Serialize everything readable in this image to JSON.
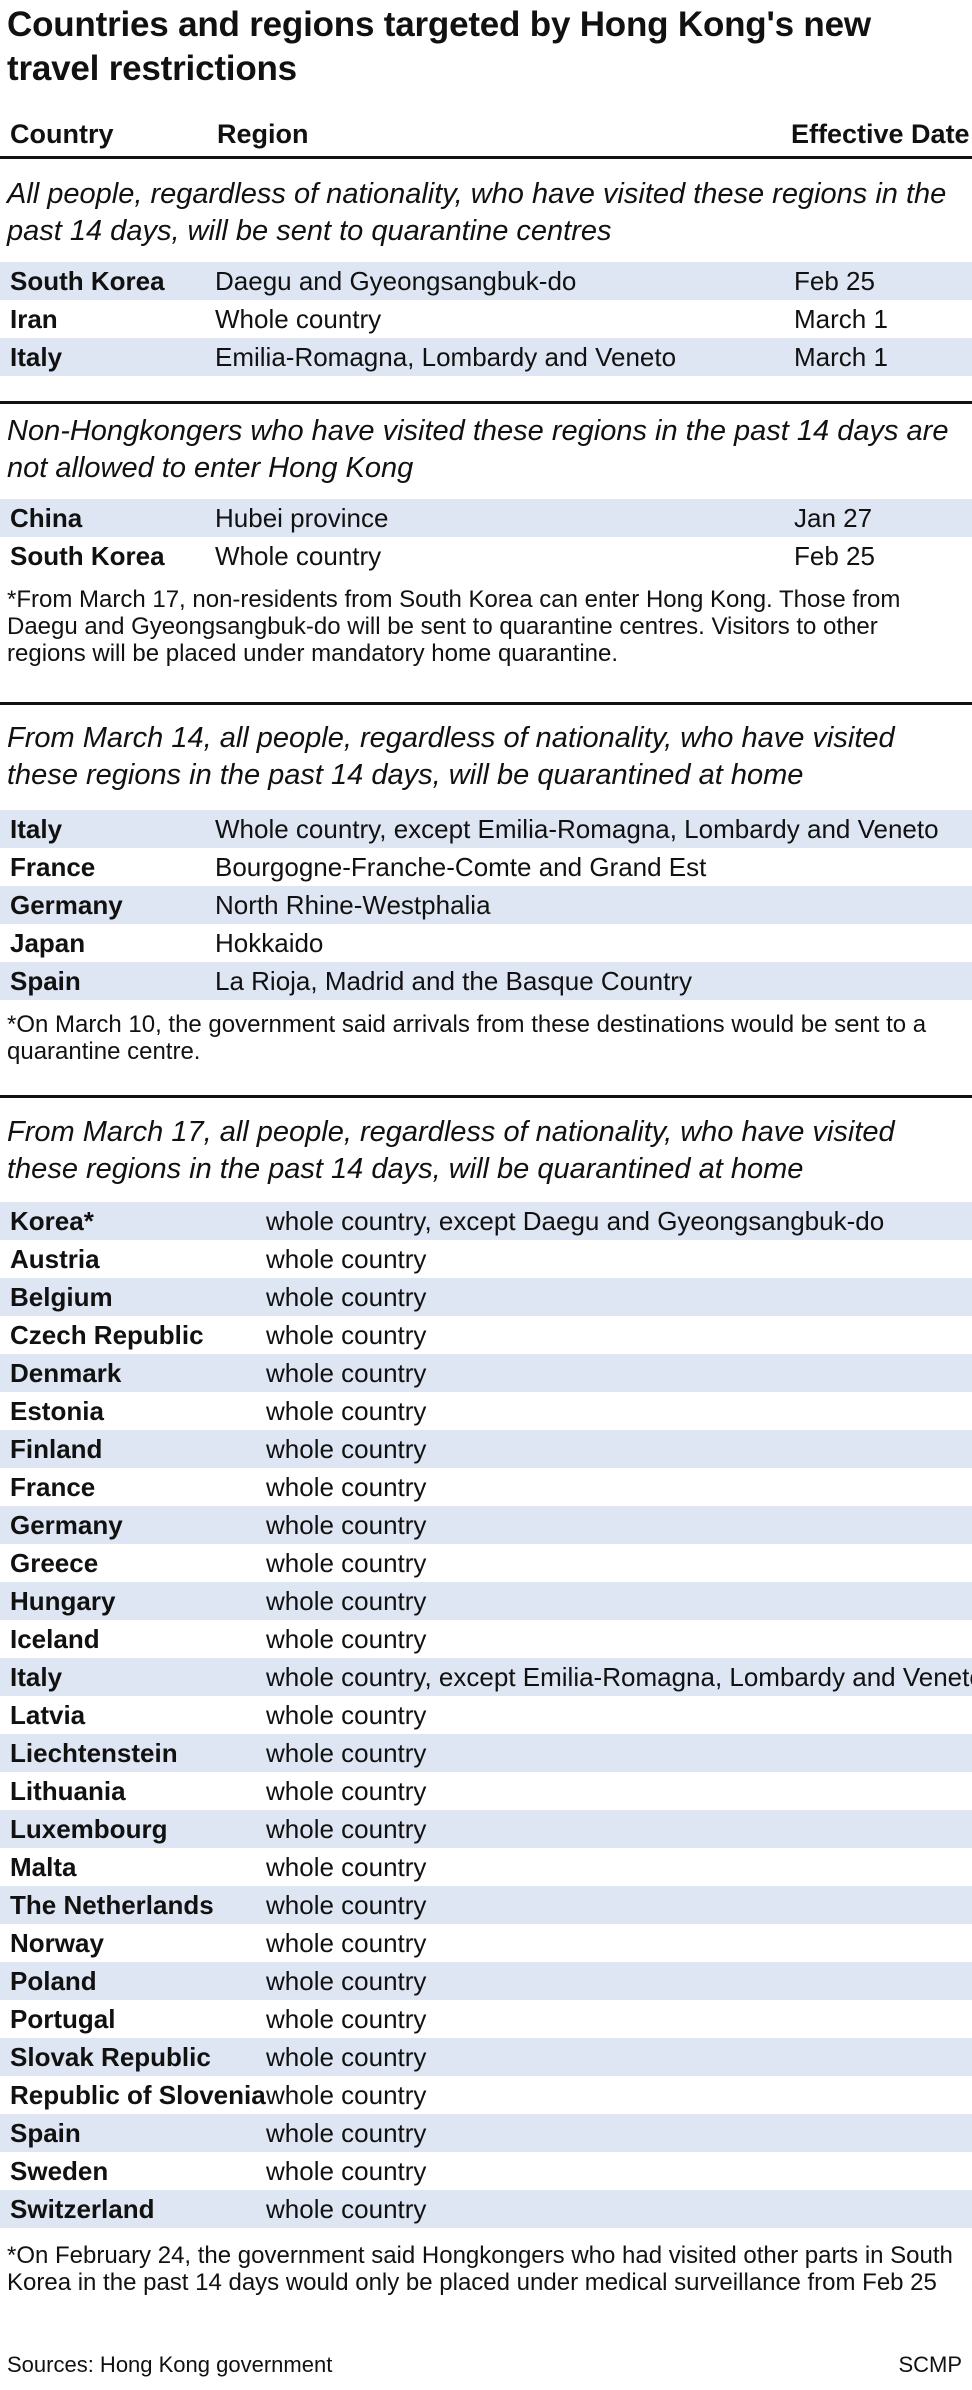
{
  "title": "Countries and regions targeted by Hong Kong's new travel restrictions",
  "columns": {
    "country": "Country",
    "region": "Region",
    "date": "Effective Date"
  },
  "section1": {
    "heading": "All people, regardless of nationality, who have visited these regions in the past 14 days, will be sent to quarantine centres",
    "rows": [
      {
        "country": "South Korea",
        "region": "Daegu and Gyeongsangbuk-do",
        "date": "Feb 25"
      },
      {
        "country": "Iran",
        "region": "Whole country",
        "date": "March 1"
      },
      {
        "country": "Italy",
        "region": "Emilia-Romagna, Lombardy and Veneto",
        "date": "March 1"
      }
    ]
  },
  "section2": {
    "heading": "Non-Hongkongers who have visited these regions in the past 14 days are not allowed to enter Hong Kong",
    "rows": [
      {
        "country": "China",
        "region": "Hubei province",
        "date": "Jan 27"
      },
      {
        "country": "South Korea",
        "region": "Whole country",
        "date": "Feb 25"
      }
    ],
    "note": "*From March 17, non-residents from South Korea can enter Hong Kong. Those from Daegu and Gyeongsangbuk-do will be sent to quarantine centres. Visitors to other regions will be placed under mandatory home quarantine."
  },
  "section3": {
    "heading": "From March 14, all people, regardless of nationality, who have visited these regions in the past 14 days, will be quarantined at home",
    "rows": [
      {
        "country": "Italy",
        "region": "Whole country, except Emilia-Romagna, Lombardy and Veneto"
      },
      {
        "country": "France",
        "region": "Bourgogne-Franche-Comte and Grand Est"
      },
      {
        "country": "Germany",
        "region": "North Rhine-Westphalia"
      },
      {
        "country": "Japan",
        "region": "Hokkaido"
      },
      {
        "country": "Spain",
        "region": "La Rioja, Madrid and the Basque Country"
      }
    ],
    "note": "*On March 10, the government said arrivals from these destinations would be sent to a quarantine centre."
  },
  "section4": {
    "heading": "From March 17, all people, regardless of nationality, who have visited these regions in the past 14 days, will be quarantined at home",
    "rows": [
      {
        "country": "Korea*",
        "region": "whole country, except Daegu and Gyeongsangbuk-do"
      },
      {
        "country": "Austria",
        "region": "whole country"
      },
      {
        "country": "Belgium",
        "region": "whole country"
      },
      {
        "country": "Czech Republic",
        "region": "whole country"
      },
      {
        "country": "Denmark",
        "region": "whole country"
      },
      {
        "country": "Estonia",
        "region": "whole country"
      },
      {
        "country": "Finland",
        "region": "whole country"
      },
      {
        "country": "France",
        "region": "whole country"
      },
      {
        "country": "Germany",
        "region": "whole country"
      },
      {
        "country": "Greece",
        "region": "whole country"
      },
      {
        "country": "Hungary",
        "region": "whole country"
      },
      {
        "country": "Iceland",
        "region": "whole country"
      },
      {
        "country": "Italy",
        "region": "whole country, except Emilia-Romagna, Lombardy and Veneto"
      },
      {
        "country": "Latvia",
        "region": "whole country"
      },
      {
        "country": "Liechtenstein",
        "region": "whole country"
      },
      {
        "country": "Lithuania",
        "region": "whole country"
      },
      {
        "country": "Luxembourg",
        "region": "whole country"
      },
      {
        "country": "Malta",
        "region": "whole country"
      },
      {
        "country": "The Netherlands",
        "region": "whole country"
      },
      {
        "country": "Norway",
        "region": "whole country"
      },
      {
        "country": "Poland",
        "region": "whole country"
      },
      {
        "country": "Portugal",
        "region": "whole country"
      },
      {
        "country": "Slovak Republic",
        "region": "whole country"
      },
      {
        "country": "Republic of Slovenia",
        "region": "whole country"
      },
      {
        "country": "Spain",
        "region": "whole country"
      },
      {
        "country": "Sweden",
        "region": "whole country"
      },
      {
        "country": "Switzerland",
        "region": "whole country"
      }
    ],
    "note": "*On February 24, the government said Hongkongers who had visited other parts in South Korea in the past 14 days would only be placed under medical surveillance from Feb 25"
  },
  "footer": {
    "source": "Sources: Hong Kong government",
    "credit": "SCMP"
  },
  "colors": {
    "row_shade": "#dfe6f3",
    "rule": "#111111"
  }
}
